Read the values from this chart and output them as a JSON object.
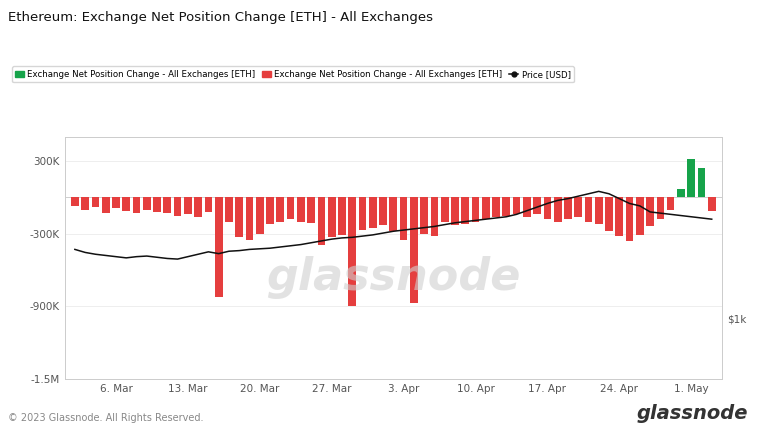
{
  "title": "Ethereum: Exchange Net Position Change [ETH] - All Exchanges",
  "legend_labels": [
    "Exchange Net Position Change - All Exchanges [ETH]",
    "Exchange Net Position Change - All Exchanges [ETH]",
    "Price [USD]"
  ],
  "legend_colors": [
    "#16a34a",
    "#e53e3e",
    "#111111"
  ],
  "xlabel_ticks": [
    "6. Mar",
    "13. Mar",
    "20. Mar",
    "27. Mar",
    "3. Apr",
    "10. Apr",
    "17. Apr",
    "24. Apr",
    "1. May"
  ],
  "ylim_left": [
    -1500000,
    500000
  ],
  "ylim_right": [
    500,
    2500
  ],
  "yticks_left": [
    -1500000,
    -900000,
    -300000,
    300000
  ],
  "ytick_labels_left": [
    "-1.5M",
    "-900K",
    "-300K",
    "300K"
  ],
  "ytick_right_label": "$1k",
  "ytick_right_val": 1000,
  "background_color": "#ffffff",
  "bar_width": 0.75,
  "watermark": "glassnode",
  "footer": "© 2023 Glassnode. All Rights Reserved.",
  "n_bars": 63,
  "bar_values": [
    -70000,
    -100000,
    -80000,
    -130000,
    -90000,
    -110000,
    -130000,
    -100000,
    -120000,
    -130000,
    -150000,
    -140000,
    -160000,
    -120000,
    -820000,
    -200000,
    -330000,
    -350000,
    -300000,
    -220000,
    -200000,
    -180000,
    -200000,
    -210000,
    -390000,
    -330000,
    -310000,
    -900000,
    -270000,
    -250000,
    -230000,
    -280000,
    -350000,
    -870000,
    -300000,
    -320000,
    -200000,
    -230000,
    -220000,
    -200000,
    -180000,
    -160000,
    -150000,
    -140000,
    -160000,
    -140000,
    -180000,
    -200000,
    -180000,
    -160000,
    -200000,
    -220000,
    -280000,
    -320000,
    -360000,
    -310000,
    -240000,
    -180000,
    -100000,
    70000,
    320000,
    240000,
    -110000
  ],
  "price_values_scaled": [
    1570,
    1545,
    1530,
    1520,
    1510,
    1500,
    1510,
    1515,
    1505,
    1495,
    1490,
    1510,
    1530,
    1550,
    1535,
    1555,
    1560,
    1570,
    1575,
    1580,
    1590,
    1600,
    1610,
    1625,
    1640,
    1655,
    1665,
    1670,
    1680,
    1690,
    1705,
    1720,
    1730,
    1740,
    1750,
    1760,
    1775,
    1790,
    1800,
    1810,
    1820,
    1830,
    1840,
    1860,
    1890,
    1920,
    1950,
    1975,
    1990,
    2010,
    2030,
    2050,
    2030,
    1990,
    1950,
    1930,
    1880,
    1870,
    1860,
    1850,
    1840,
    1830,
    1820
  ],
  "tick_positions": [
    4,
    11,
    18,
    25,
    32,
    39,
    46,
    53,
    60
  ]
}
